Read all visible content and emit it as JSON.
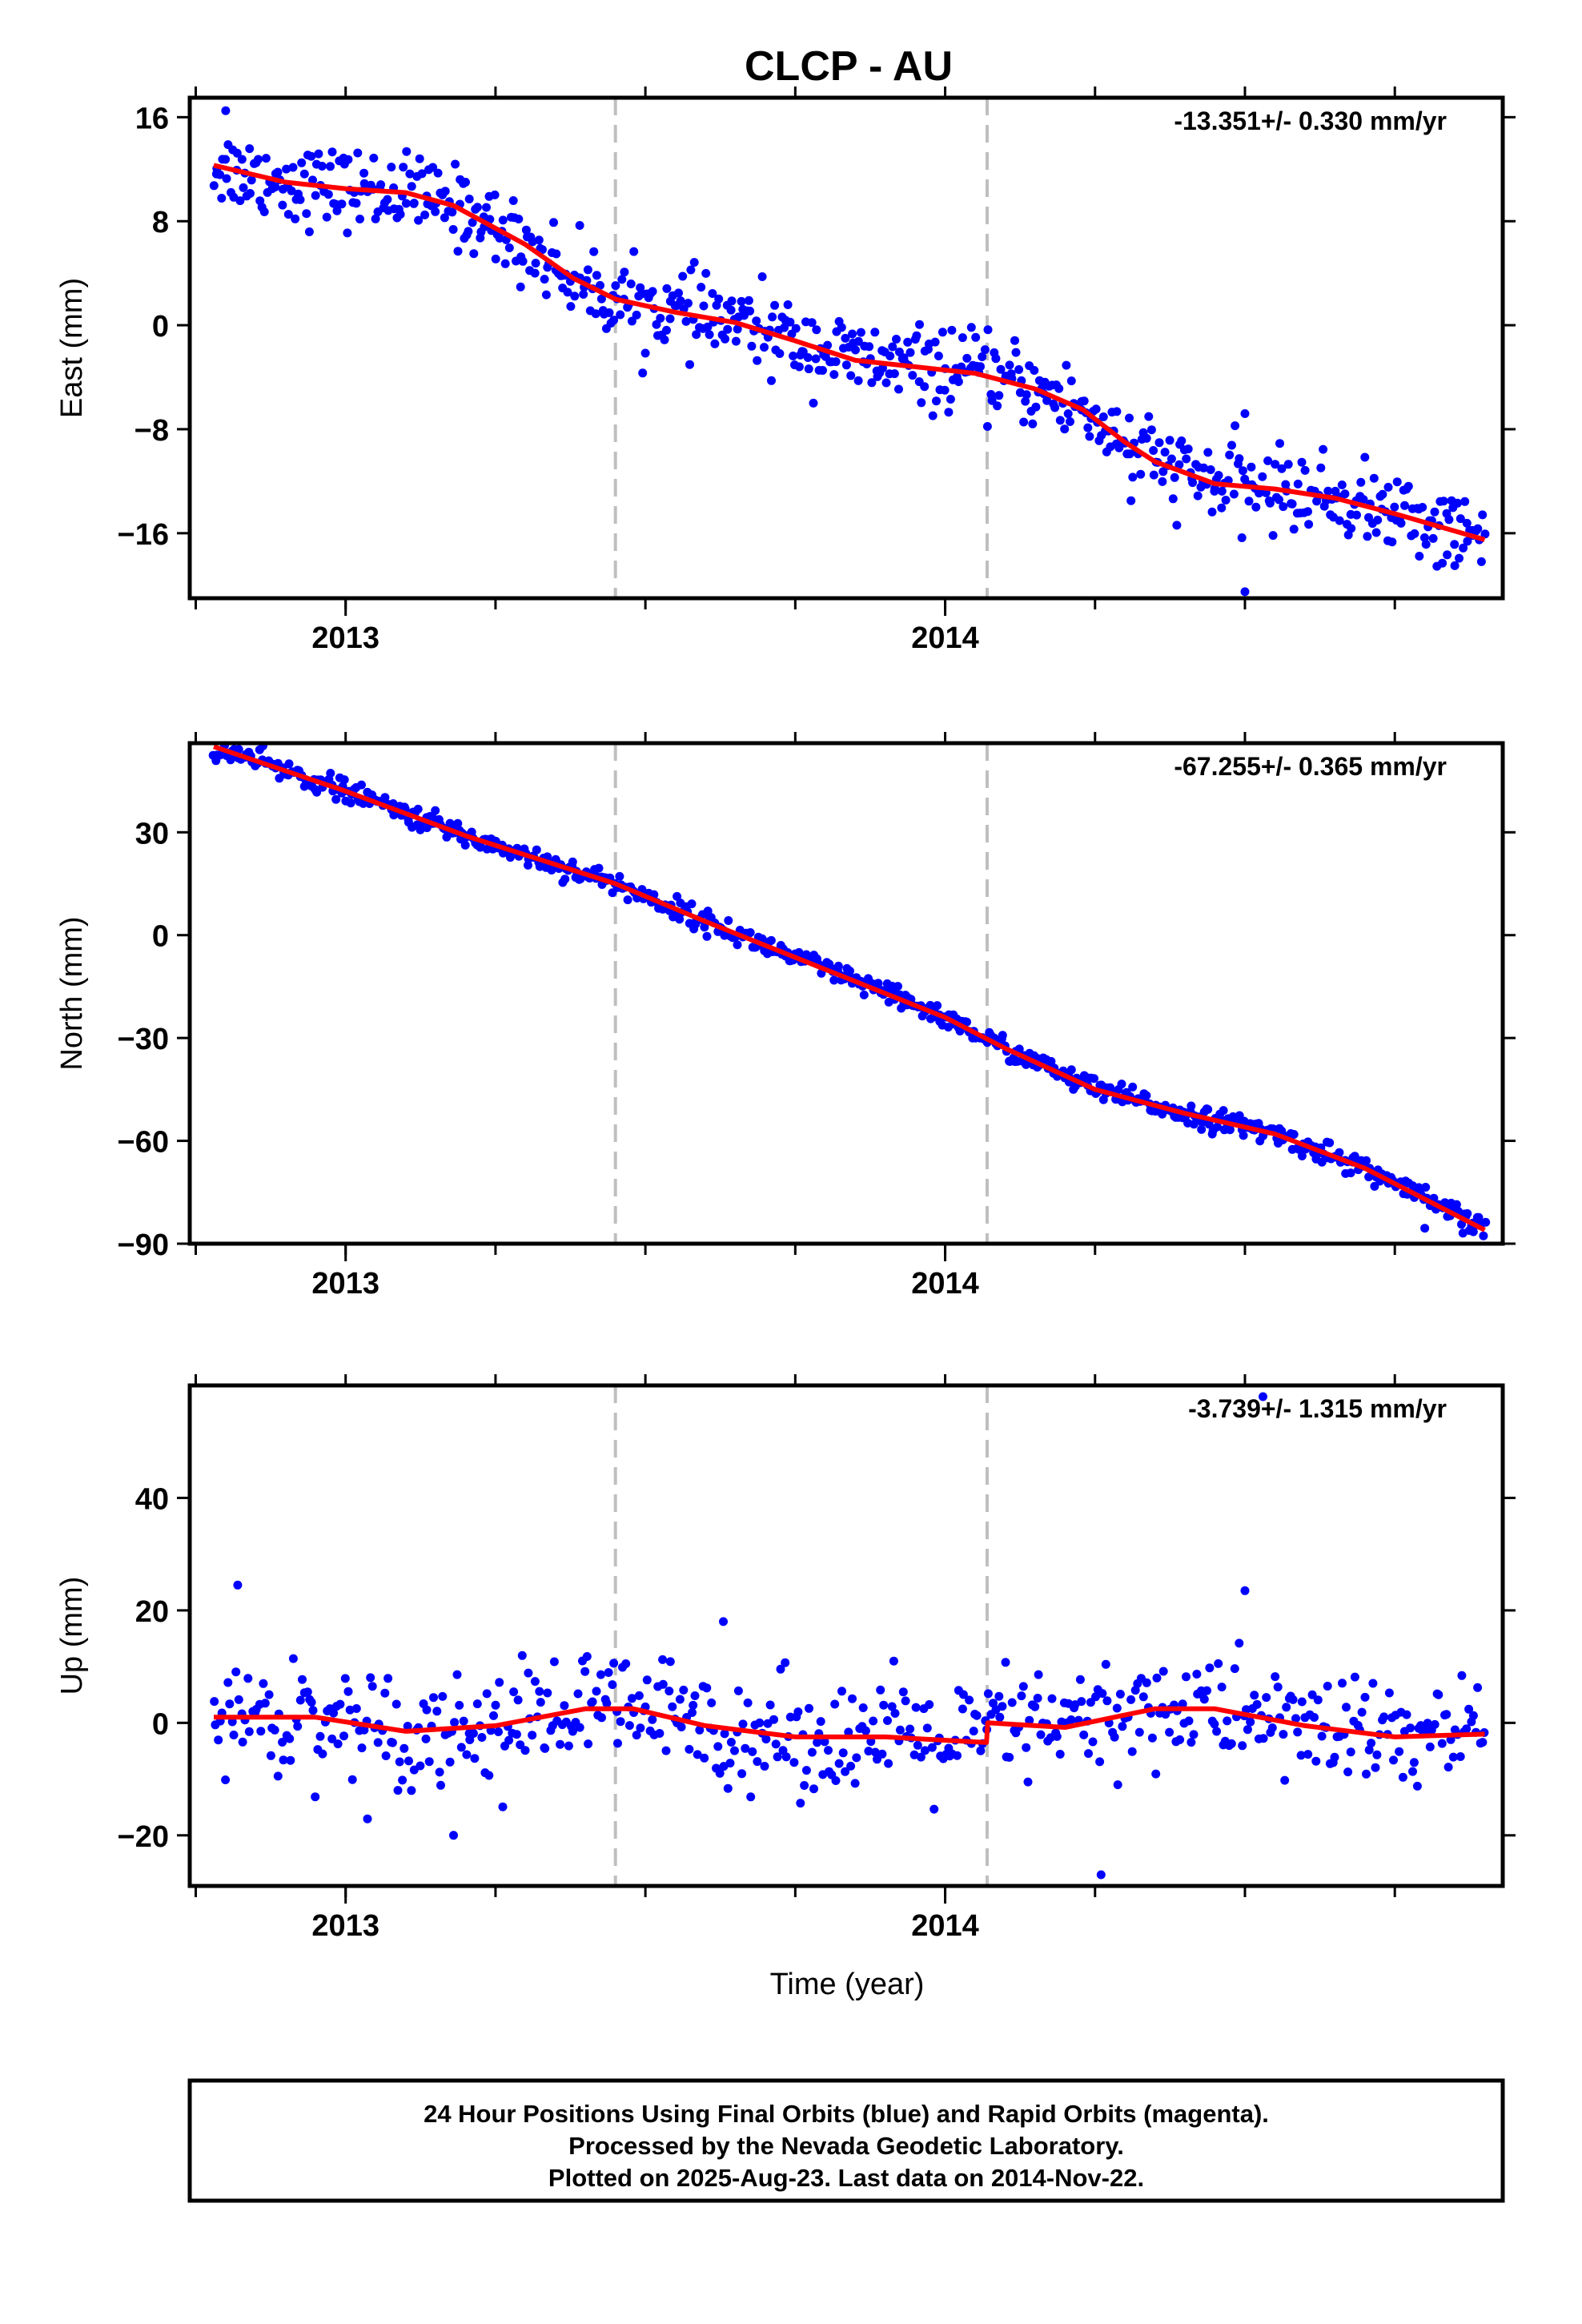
{
  "figure": {
    "title": "CLCP - AU",
    "xlabel": "Time (year)",
    "footer": [
      "24 Hour Positions Using Final Orbits (blue) and Rapid Orbits (magenta).",
      "Processed by the Nevada Geodetic Laboratory.",
      "Plotted on 2025-Aug-23. Last data on 2014-Nov-22."
    ]
  },
  "colors": {
    "points": "#0000ff",
    "fit": "#ff0000",
    "event_line": "#bfbfbf",
    "frame": "#000000"
  },
  "chart_data": [
    {
      "type": "scatter",
      "ylabel": "East (mm)",
      "rate_text": "-13.351+/- 0.330 mm/yr",
      "xlim": [
        2012.74,
        2014.93
      ],
      "ylim": [
        -21,
        17.5
      ],
      "xticks": [
        2013,
        2014
      ],
      "yticks": [
        -16,
        -8,
        0,
        8,
        16
      ],
      "event_lines": [
        2013.45,
        2014.07
      ],
      "fit": {
        "x": [
          2012.78,
          2012.9,
          2013.0,
          2013.1,
          2013.18,
          2013.3,
          2013.38,
          2013.45,
          2013.55,
          2013.65,
          2013.75,
          2013.85,
          2013.95,
          2014.05,
          2014.15,
          2014.23,
          2014.3,
          2014.35,
          2014.45,
          2014.55,
          2014.65,
          2014.75,
          2014.9
        ],
        "y": [
          12.3,
          11.0,
          10.5,
          10.2,
          9.2,
          6.2,
          3.6,
          2.0,
          1.0,
          0.2,
          -1.2,
          -2.7,
          -3.2,
          -3.7,
          -4.9,
          -6.5,
          -9.0,
          -10.5,
          -12.2,
          -12.6,
          -13.3,
          -14.5,
          -16.5
        ]
      },
      "points": {
        "n": 690,
        "noise_mm": 1.5,
        "outliers": [
          [
            2012.8,
            16.5
          ],
          [
            2013.2,
            11.0
          ],
          [
            2014.5,
            -20.5
          ],
          [
            2014.5,
            -6.8
          ],
          [
            2014.31,
            -13.5
          ],
          [
            2014.85,
            -18.5
          ]
        ]
      }
    },
    {
      "type": "scatter",
      "ylabel": "North (mm)",
      "rate_text": "-67.255+/- 0.365 mm/yr",
      "xlim": [
        2012.74,
        2014.93
      ],
      "ylim": [
        -90,
        56
      ],
      "xticks": [
        2013,
        2014
      ],
      "yticks": [
        -90,
        -60,
        -30,
        0,
        30
      ],
      "event_lines": [
        2013.45,
        2014.07
      ],
      "fit": {
        "x": [
          2012.78,
          2013.0,
          2013.2,
          2013.45,
          2013.6,
          2013.8,
          2014.0,
          2014.1,
          2014.25,
          2014.4,
          2014.55,
          2014.7,
          2014.9
        ],
        "y": [
          55,
          42,
          29,
          15,
          4,
          -10,
          -24,
          -33,
          -45,
          -52,
          -58,
          -68,
          -86
        ]
      },
      "points": {
        "n": 690,
        "noise_mm": 1.6,
        "outliers": [
          [
            2014.8,
            -85.5
          ],
          [
            2014.88,
            -84.0
          ]
        ]
      }
    },
    {
      "type": "scatter",
      "ylabel": "Up (mm)",
      "rate_text": "-3.739+/- 1.315 mm/yr",
      "xlim": [
        2012.74,
        2014.93
      ],
      "ylim": [
        -29,
        60
      ],
      "xticks": [
        2013,
        2014
      ],
      "yticks": [
        -20,
        0,
        20,
        40
      ],
      "event_lines": [
        2013.45,
        2014.07
      ],
      "fit": {
        "x": [
          2012.78,
          2012.95,
          2013.1,
          2013.25,
          2013.4,
          2013.48,
          2013.6,
          2013.75,
          2013.9,
          2014.069,
          2014.071,
          2014.2,
          2014.35,
          2014.45,
          2014.6,
          2014.75,
          2014.9
        ],
        "y": [
          1,
          1,
          -1.5,
          -0.5,
          2.5,
          2.5,
          -0.5,
          -2.5,
          -2.5,
          -3.5,
          0,
          -0.8,
          2.5,
          2.5,
          -0.5,
          -2.5,
          -2
        ]
      },
      "points": {
        "n": 560,
        "noise_mm": 5.0,
        "outliers": [
          [
            2014.53,
            58
          ],
          [
            2014.5,
            23.5
          ],
          [
            2012.82,
            24.5
          ],
          [
            2013.63,
            18
          ],
          [
            2014.26,
            -27
          ],
          [
            2013.18,
            -20
          ]
        ]
      }
    }
  ]
}
